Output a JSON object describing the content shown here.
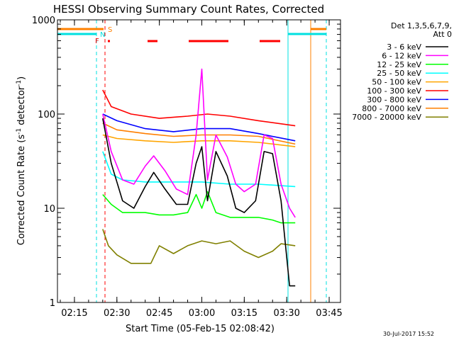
{
  "chart_data": {
    "type": "line",
    "title": "HESSI Observing Summary Count Rates, Corrected",
    "xlabel": "Start Time (05-Feb-15 02:08:42)",
    "ylabel": "Corrected Count Rate (s",
    "ylabel_sup1": "-1",
    "ylabel_mid": " detector",
    "ylabel_sup2": "-1",
    "ylabel_end": ")",
    "ylim": [
      1,
      1000
    ],
    "y_scale": "log",
    "xlim": [
      "02:09",
      "03:49"
    ],
    "x_ticks": [
      "02:15",
      "02:30",
      "02:45",
      "03:00",
      "03:15",
      "03:30",
      "03:45"
    ],
    "y_ticks": [
      "1",
      "10",
      "100",
      "1000"
    ],
    "grid": false,
    "timestamp": "30-Jul-2017 15:52",
    "legend": {
      "placement": "right",
      "header1": "Det 1,3,5,6,7,9,",
      "header2": "Att 0"
    },
    "flags": {
      "s_label": "S",
      "n_label": "N",
      "f_label": "F",
      "s_color": "#ff8000",
      "n_color": "#00e0e0",
      "f_color": "#ff0000"
    },
    "series": [
      {
        "name": "3 - 6 keV",
        "color": "#000000",
        "x": [
          "02:25",
          "02:28",
          "02:32",
          "02:36",
          "02:40",
          "02:43",
          "02:47",
          "02:51",
          "02:55",
          "02:58",
          "03:00",
          "03:02",
          "03:05",
          "03:09",
          "03:12",
          "03:15",
          "03:19",
          "03:22",
          "03:25",
          "03:28",
          "03:30",
          "03:31",
          "03:33"
        ],
        "values": [
          90,
          30,
          12,
          10,
          17,
          24,
          16,
          11,
          11,
          30,
          45,
          12,
          40,
          22,
          10,
          9,
          12,
          40,
          38,
          12,
          3,
          1.5,
          1.5
        ]
      },
      {
        "name": "6 - 12 keV",
        "color": "#ff00ff",
        "x": [
          "02:25",
          "02:28",
          "02:32",
          "02:36",
          "02:40",
          "02:43",
          "02:47",
          "02:51",
          "02:55",
          "02:58",
          "03:00",
          "03:02",
          "03:05",
          "03:09",
          "03:12",
          "03:15",
          "03:19",
          "03:22",
          "03:25",
          "03:28",
          "03:31",
          "03:33"
        ],
        "values": [
          100,
          40,
          20,
          18,
          28,
          36,
          25,
          16,
          14,
          60,
          300,
          20,
          60,
          35,
          18,
          15,
          18,
          60,
          55,
          18,
          10,
          8
        ]
      },
      {
        "name": "12 - 25 keV",
        "color": "#00ff00",
        "x": [
          "02:25",
          "02:28",
          "02:32",
          "02:36",
          "02:40",
          "02:45",
          "02:50",
          "02:55",
          "02:58",
          "03:00",
          "03:02",
          "03:05",
          "03:10",
          "03:15",
          "03:20",
          "03:25",
          "03:28",
          "03:33"
        ],
        "values": [
          14,
          11,
          9,
          9,
          9,
          8.5,
          8.5,
          9,
          14,
          10,
          15,
          9,
          8,
          8,
          8,
          7.5,
          7,
          7
        ]
      },
      {
        "name": "25 - 50 keV",
        "color": "#00ffff",
        "x": [
          "02:25",
          "02:28",
          "02:32",
          "02:40",
          "02:50",
          "03:00",
          "03:10",
          "03:20",
          "03:33"
        ],
        "values": [
          40,
          23,
          20,
          19,
          19,
          19,
          18,
          18,
          17
        ]
      },
      {
        "name": "50 - 100 keV",
        "color": "#ffa500",
        "x": [
          "02:25",
          "02:30",
          "02:40",
          "02:50",
          "03:00",
          "03:10",
          "03:20",
          "03:33"
        ],
        "values": [
          60,
          55,
          52,
          50,
          52,
          52,
          50,
          45
        ]
      },
      {
        "name": "100 - 300 keV",
        "color": "#ff0000",
        "x": [
          "02:25",
          "02:28",
          "02:35",
          "02:45",
          "02:55",
          "03:02",
          "03:10",
          "03:20",
          "03:33"
        ],
        "values": [
          180,
          120,
          100,
          90,
          95,
          100,
          95,
          85,
          75
        ]
      },
      {
        "name": "300 - 800 keV",
        "color": "#0000ff",
        "x": [
          "02:25",
          "02:30",
          "02:40",
          "02:50",
          "03:00",
          "03:10",
          "03:20",
          "03:33"
        ],
        "values": [
          100,
          85,
          70,
          65,
          70,
          70,
          62,
          52
        ]
      },
      {
        "name": "800 - 7000 keV",
        "color": "#ff7f00",
        "x": [
          "02:25",
          "02:30",
          "02:40",
          "02:50",
          "03:00",
          "03:10",
          "03:20",
          "03:33"
        ],
        "values": [
          80,
          68,
          62,
          58,
          60,
          60,
          58,
          48
        ]
      },
      {
        "name": "7000 - 20000 keV",
        "color": "#808000",
        "x": [
          "02:25",
          "02:27",
          "02:30",
          "02:35",
          "02:42",
          "02:45",
          "02:50",
          "02:55",
          "03:00",
          "03:05",
          "03:10",
          "03:15",
          "03:20",
          "03:25",
          "03:28",
          "03:33"
        ],
        "values": [
          6,
          4,
          3.2,
          2.6,
          2.6,
          4,
          3.3,
          4,
          4.5,
          4.2,
          4.5,
          3.5,
          3,
          3.5,
          4.2,
          4
        ]
      }
    ]
  }
}
